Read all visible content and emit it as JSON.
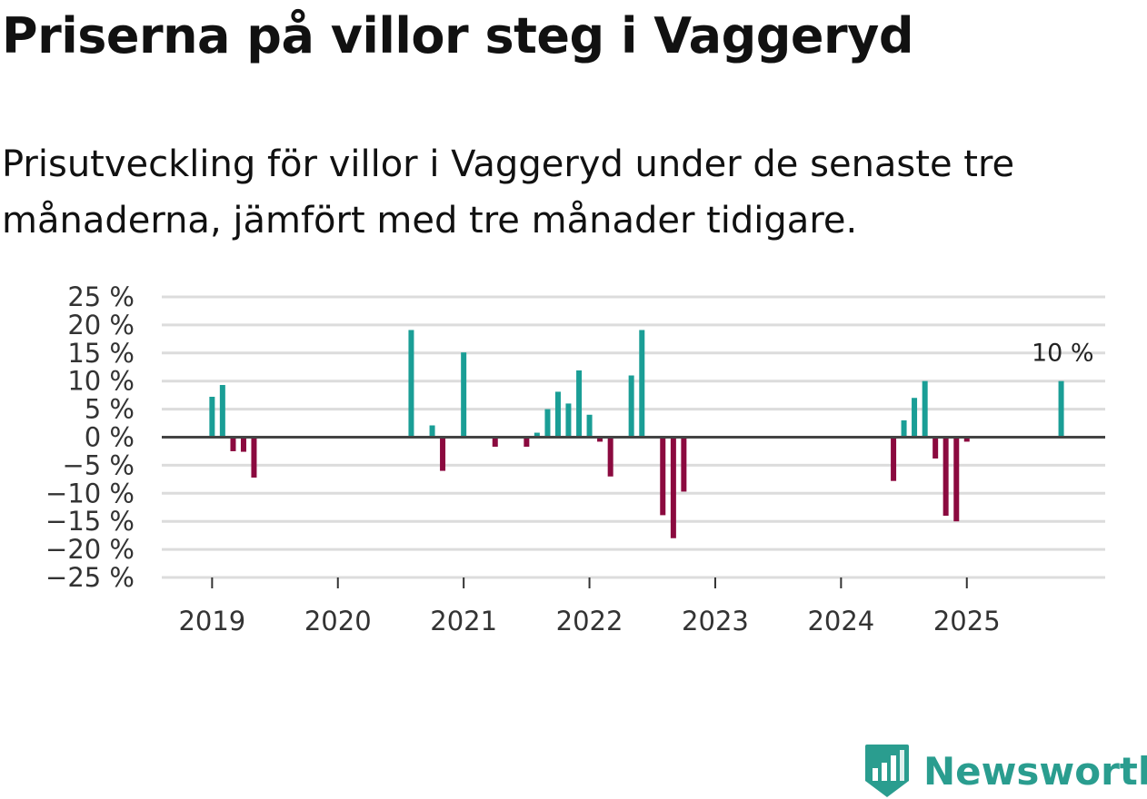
{
  "header": {
    "title": "Priserna på villor steg i Vaggeryd",
    "subtitle": "Prisutveckling för villor i Vaggeryd under de senaste tre månaderna, jämfört med tre månader tidigare."
  },
  "chart_data": {
    "type": "bar",
    "title": "Priserna på villor steg i Vaggeryd",
    "subtitle": "Prisutveckling för villor i Vaggeryd under de senaste tre månaderna, jämfört med tre månader tidigare.",
    "xlabel": "",
    "ylabel": "",
    "ylim": [
      -25,
      25
    ],
    "yticks": [
      25,
      20,
      15,
      10,
      5,
      0,
      -5,
      -10,
      -15,
      -20,
      -25
    ],
    "ytick_labels": [
      "25 %",
      "20 %",
      "15 %",
      "10 %",
      "5 %",
      "0 %",
      "−5 %",
      "−10 %",
      "−15 %",
      "−20 %",
      "−25 %"
    ],
    "xlim": [
      2018.6,
      2026.1
    ],
    "xticks": [
      2019,
      2020,
      2021,
      2022,
      2023,
      2024,
      2025
    ],
    "xtick_labels": [
      "2019",
      "2020",
      "2021",
      "2022",
      "2023",
      "2024",
      "2025"
    ],
    "grid": true,
    "positive_color": "#1a9e96",
    "negative_color": "#8b0a3f",
    "series": [
      {
        "name": "Prisutveckling",
        "points": [
          {
            "x": 2019.0,
            "y": 7.2
          },
          {
            "x": 2019.083,
            "y": 9.3
          },
          {
            "x": 2019.167,
            "y": -2.5
          },
          {
            "x": 2019.25,
            "y": -2.6
          },
          {
            "x": 2019.333,
            "y": -7.2
          },
          {
            "x": 2020.583,
            "y": 19.1
          },
          {
            "x": 2020.75,
            "y": 2.1
          },
          {
            "x": 2020.833,
            "y": -6.0
          },
          {
            "x": 2021.0,
            "y": 15.1
          },
          {
            "x": 2021.25,
            "y": -1.7
          },
          {
            "x": 2021.5,
            "y": -1.7
          },
          {
            "x": 2021.583,
            "y": 0.8
          },
          {
            "x": 2021.667,
            "y": 5.0
          },
          {
            "x": 2021.75,
            "y": 8.1
          },
          {
            "x": 2021.833,
            "y": 6.0
          },
          {
            "x": 2021.917,
            "y": 11.9
          },
          {
            "x": 2022.0,
            "y": 4.0
          },
          {
            "x": 2022.083,
            "y": -0.8
          },
          {
            "x": 2022.167,
            "y": -7.0
          },
          {
            "x": 2022.333,
            "y": 11.0
          },
          {
            "x": 2022.417,
            "y": 19.1
          },
          {
            "x": 2022.583,
            "y": -13.9
          },
          {
            "x": 2022.667,
            "y": -18.0
          },
          {
            "x": 2022.75,
            "y": -9.7
          },
          {
            "x": 2024.417,
            "y": -7.8
          },
          {
            "x": 2024.5,
            "y": 3.0
          },
          {
            "x": 2024.583,
            "y": 7.0
          },
          {
            "x": 2024.667,
            "y": 10.0
          },
          {
            "x": 2024.75,
            "y": -3.8
          },
          {
            "x": 2024.833,
            "y": -14.0
          },
          {
            "x": 2024.917,
            "y": -15.0
          },
          {
            "x": 2025.0,
            "y": -0.8
          },
          {
            "x": 2025.75,
            "y": 10.0
          }
        ]
      }
    ],
    "annotation": {
      "x": 2025.75,
      "y": 10.0,
      "label": "10 %"
    }
  },
  "brand": {
    "name": "Newsworthy",
    "color": "#2a9d8f",
    "icon": "newsworthy-logo-icon"
  }
}
